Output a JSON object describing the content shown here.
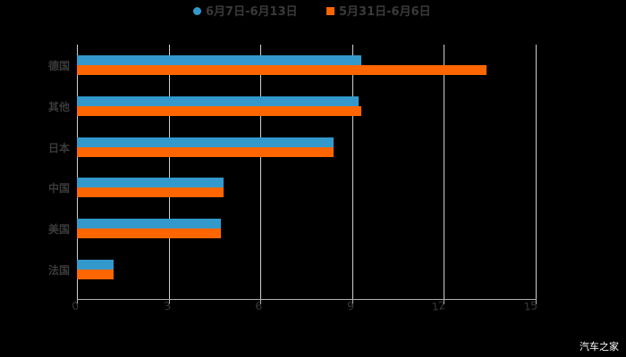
{
  "legend": [
    {
      "label": "6月7日-6月13日",
      "color": "#3399cc"
    },
    {
      "label": "5月31日-6月6日",
      "color": "#ff6600"
    }
  ],
  "watermark": "汽车之家",
  "chart_data": {
    "type": "bar",
    "orientation": "horizontal",
    "title": "",
    "categories": [
      "德国",
      "其他",
      "日本",
      "中国",
      "美国",
      "法国"
    ],
    "series": [
      {
        "name": "6月7日-6月13日",
        "color": "#3399cc",
        "values": [
          9.3,
          9.2,
          8.4,
          4.8,
          4.7,
          1.2
        ]
      },
      {
        "name": "5月31日-6月6日",
        "color": "#ff6600",
        "values": [
          13.4,
          9.3,
          8.4,
          4.8,
          4.7,
          1.2
        ]
      }
    ],
    "xlabel": "",
    "ylabel": "",
    "xlim": [
      0,
      15
    ],
    "xticks": [
      "0",
      "3",
      "6",
      "9",
      "12",
      "15"
    ],
    "grid": true,
    "legend_position": "top"
  }
}
